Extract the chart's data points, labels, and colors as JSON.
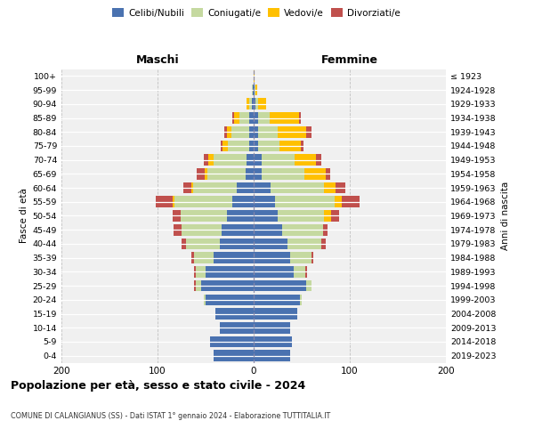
{
  "age_groups": [
    "0-4",
    "5-9",
    "10-14",
    "15-19",
    "20-24",
    "25-29",
    "30-34",
    "35-39",
    "40-44",
    "45-49",
    "50-54",
    "55-59",
    "60-64",
    "65-69",
    "70-74",
    "75-79",
    "80-84",
    "85-89",
    "90-94",
    "95-99",
    "100+"
  ],
  "birth_years": [
    "2019-2023",
    "2014-2018",
    "2009-2013",
    "2004-2008",
    "1999-2003",
    "1994-1998",
    "1989-1993",
    "1984-1988",
    "1979-1983",
    "1974-1978",
    "1969-1973",
    "1964-1968",
    "1959-1963",
    "1954-1958",
    "1949-1953",
    "1944-1948",
    "1939-1943",
    "1934-1938",
    "1929-1933",
    "1924-1928",
    "≤ 1923"
  ],
  "male_celibi": [
    42,
    45,
    35,
    40,
    50,
    55,
    50,
    42,
    35,
    33,
    28,
    22,
    18,
    8,
    7,
    5,
    5,
    5,
    2,
    1,
    0
  ],
  "male_coniugati": [
    0,
    0,
    0,
    0,
    2,
    5,
    10,
    20,
    35,
    42,
    48,
    60,
    45,
    40,
    35,
    22,
    18,
    10,
    3,
    1,
    0
  ],
  "male_vedovi": [
    0,
    0,
    0,
    0,
    0,
    0,
    0,
    0,
    0,
    0,
    0,
    2,
    2,
    3,
    5,
    5,
    5,
    5,
    2,
    0,
    0
  ],
  "male_divorziati": [
    0,
    0,
    0,
    0,
    0,
    2,
    2,
    3,
    5,
    8,
    8,
    18,
    8,
    8,
    5,
    2,
    3,
    2,
    0,
    0,
    0
  ],
  "female_celibi": [
    38,
    40,
    38,
    45,
    48,
    55,
    42,
    38,
    35,
    30,
    25,
    22,
    18,
    8,
    8,
    5,
    5,
    5,
    2,
    1,
    0
  ],
  "female_coniugati": [
    0,
    0,
    0,
    0,
    2,
    5,
    12,
    22,
    35,
    42,
    48,
    62,
    55,
    45,
    35,
    22,
    20,
    12,
    3,
    1,
    0
  ],
  "female_vedovi": [
    0,
    0,
    0,
    0,
    0,
    0,
    0,
    0,
    0,
    0,
    8,
    8,
    12,
    22,
    22,
    22,
    30,
    30,
    8,
    2,
    1
  ],
  "female_divorziati": [
    0,
    0,
    0,
    0,
    0,
    0,
    2,
    2,
    5,
    5,
    8,
    18,
    10,
    5,
    5,
    3,
    5,
    2,
    0,
    0,
    0
  ],
  "colors": {
    "celibi": "#4a72b0",
    "coniugati": "#c5d9a0",
    "vedovi": "#ffc000",
    "divorziati": "#c0504d"
  },
  "title": "Popolazione per età, sesso e stato civile - 2024",
  "subtitle": "COMUNE DI CALANGIANUS (SS) - Dati ISTAT 1° gennaio 2024 - Elaborazione TUTTITALIA.IT",
  "ylabel_left": "Fasce di età",
  "ylabel_right": "Anni di nascita",
  "header_maschi": "Maschi",
  "header_femmine": "Femmine",
  "xlim": 200,
  "bg_color": "#ffffff",
  "plot_bg_color": "#f0f0f0",
  "legend_labels": [
    "Celibi/Nubili",
    "Coniugati/e",
    "Vedovi/e",
    "Divorziati/e"
  ]
}
